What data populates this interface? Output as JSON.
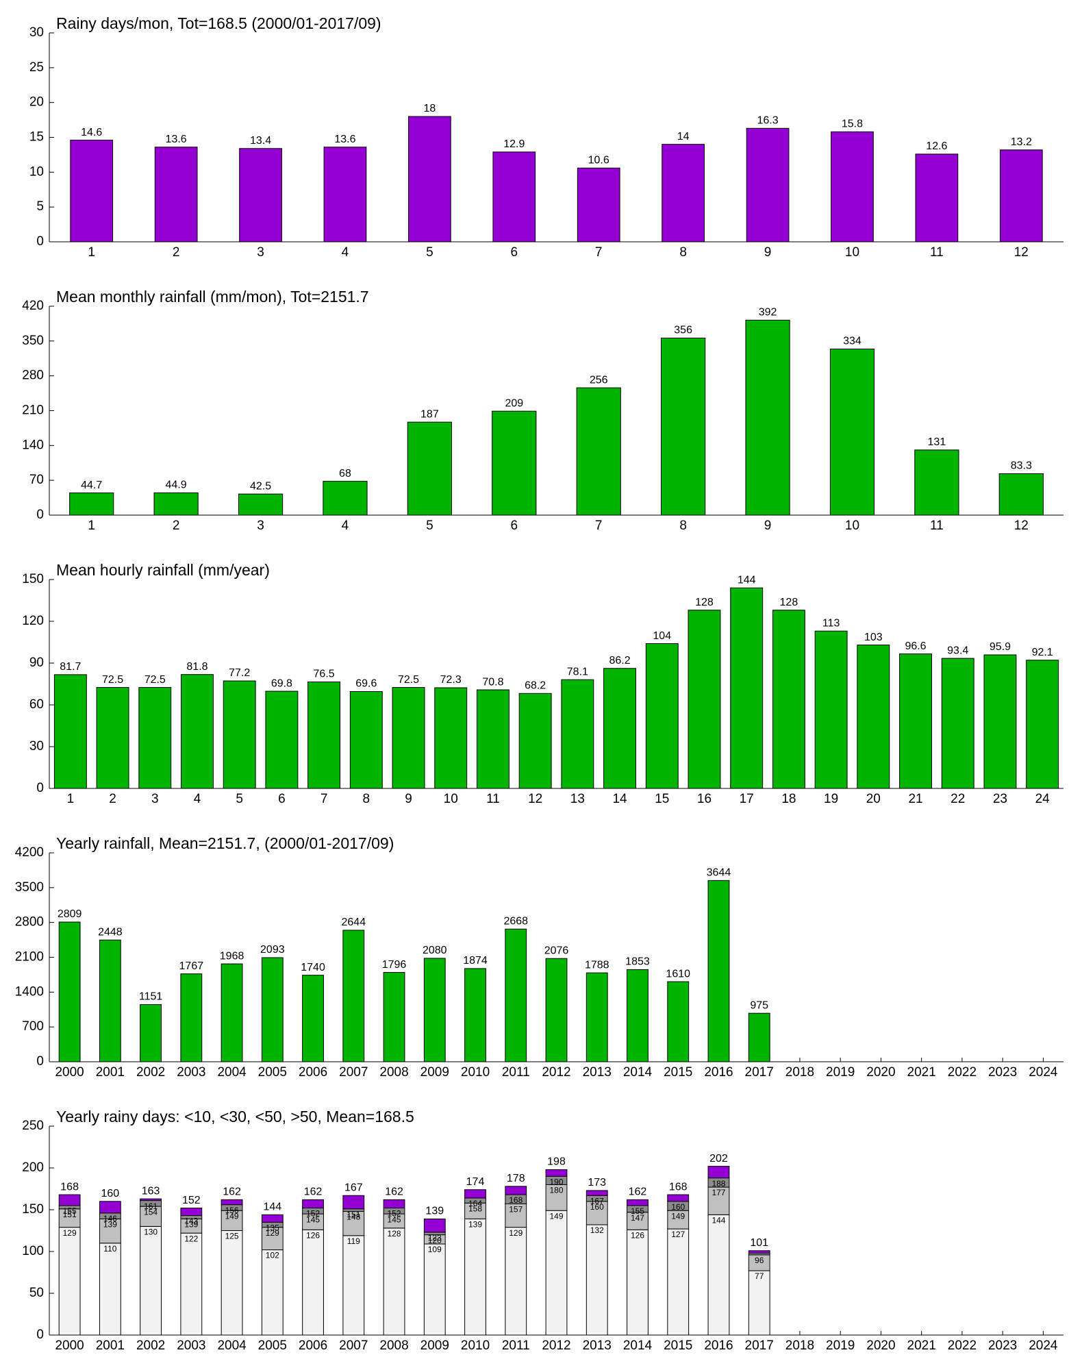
{
  "chart_data": [
    {
      "type": "bar",
      "title": "Rainy days/mon, Tot=168.5 (2000/01-2017/09)",
      "categories": [
        1,
        2,
        3,
        4,
        5,
        6,
        7,
        8,
        9,
        10,
        11,
        12
      ],
      "values": [
        14.6,
        13.6,
        13.4,
        13.6,
        18,
        12.9,
        10.6,
        14,
        16.3,
        15.8,
        12.6,
        13.2
      ],
      "color": "#9400d3",
      "ylim": [
        0,
        30
      ],
      "yticks": [
        0,
        5,
        10,
        15,
        20,
        25,
        30
      ]
    },
    {
      "type": "bar",
      "title": "Mean monthly rainfall (mm/mon), Tot=2151.7",
      "categories": [
        1,
        2,
        3,
        4,
        5,
        6,
        7,
        8,
        9,
        10,
        11,
        12
      ],
      "values": [
        44.7,
        44.9,
        42.5,
        68,
        187,
        209,
        256,
        356,
        392,
        334,
        131,
        83.3
      ],
      "color": "#00b400",
      "ylim": [
        0,
        420
      ],
      "yticks": [
        0,
        70,
        140,
        210,
        280,
        350,
        420
      ]
    },
    {
      "type": "bar",
      "title": "Mean hourly rainfall (mm/year)",
      "categories": [
        1,
        2,
        3,
        4,
        5,
        6,
        7,
        8,
        9,
        10,
        11,
        12,
        13,
        14,
        15,
        16,
        17,
        18,
        19,
        20,
        21,
        22,
        23,
        24
      ],
      "values": [
        81.7,
        72.5,
        72.5,
        81.8,
        77.2,
        69.8,
        76.5,
        69.6,
        72.5,
        72.3,
        70.8,
        68.2,
        78.1,
        86.2,
        104,
        128,
        144,
        128,
        113,
        103,
        96.6,
        93.4,
        95.9,
        92.1
      ],
      "color": "#00b400",
      "ylim": [
        0,
        150
      ],
      "yticks": [
        0,
        30,
        60,
        90,
        120,
        150
      ]
    },
    {
      "type": "bar",
      "title": "Yearly rainfall, Mean=2151.7, (2000/01-2017/09)",
      "categories": [
        2000,
        2001,
        2002,
        2003,
        2004,
        2005,
        2006,
        2007,
        2008,
        2009,
        2010,
        2011,
        2012,
        2013,
        2014,
        2015,
        2016,
        2017,
        2018,
        2019,
        2020,
        2021,
        2022,
        2023,
        2024
      ],
      "values": [
        2809,
        2448,
        1151,
        1767,
        1968,
        2093,
        1740,
        2644,
        1796,
        2080,
        1874,
        2668,
        2076,
        1788,
        1853,
        1610,
        3644,
        975,
        null,
        null,
        null,
        null,
        null,
        null,
        null
      ],
      "color": "#00b400",
      "ylim": [
        0,
        4200
      ],
      "yticks": [
        0,
        700,
        1400,
        2100,
        2800,
        3500,
        4200
      ]
    },
    {
      "type": "stacked_bar",
      "title": "Yearly rainy days: <10, <30, <50, >50, Mean=168.5",
      "categories": [
        2000,
        2001,
        2002,
        2003,
        2004,
        2005,
        2006,
        2007,
        2008,
        2009,
        2010,
        2011,
        2012,
        2013,
        2014,
        2015,
        2016,
        2017,
        2018,
        2019,
        2020,
        2021,
        2022,
        2023,
        2024
      ],
      "series": [
        {
          "name": "<10",
          "color": "#f2f2f2",
          "values": [
            129,
            110,
            130,
            122,
            125,
            102,
            126,
            119,
            128,
            109,
            139,
            129,
            149,
            132,
            126,
            127,
            144,
            77,
            null,
            null,
            null,
            null,
            null,
            null,
            null
          ],
          "labels": [
            "129",
            "110",
            "130",
            "122",
            "125",
            "102",
            "126",
            "119",
            "128",
            "109",
            "139",
            "129",
            "149",
            "132",
            "126",
            "127",
            "144",
            "77",
            null,
            null,
            null,
            null,
            null,
            null,
            null
          ]
        },
        {
          "name": "<30",
          "color": "#c0c0c0",
          "values": [
            22,
            29,
            24,
            17,
            24,
            27,
            19,
            29,
            17,
            11,
            19,
            28,
            31,
            28,
            21,
            22,
            33,
            19,
            null,
            null,
            null,
            null,
            null,
            null,
            null
          ],
          "labels": [
            "151",
            "139",
            "154",
            "139",
            "149",
            "129",
            "145",
            "148",
            "145",
            "120",
            "158",
            "157",
            "180",
            "160",
            "147",
            "149",
            "177",
            "96",
            null,
            null,
            null,
            null,
            null,
            null,
            null
          ]
        },
        {
          "name": "<50",
          "color": "#8c8c8c",
          "values": [
            4,
            7,
            7,
            4,
            7,
            6,
            7,
            3,
            7,
            3,
            6,
            11,
            10,
            7,
            8,
            11,
            11,
            2,
            null,
            null,
            null,
            null,
            null,
            null,
            null
          ],
          "labels": [
            "155",
            "146",
            "161",
            "143",
            "156",
            "135",
            "152",
            "151",
            "152",
            "123",
            "164",
            "168",
            "190",
            "167",
            "155",
            "160",
            "188",
            null,
            null,
            null,
            null,
            null,
            null,
            null,
            null
          ]
        },
        {
          "name": ">50",
          "color": "#9400d3",
          "values": [
            13,
            14,
            2,
            9,
            6,
            9,
            10,
            16,
            10,
            16,
            10,
            10,
            8,
            6,
            7,
            8,
            14,
            3,
            null,
            null,
            null,
            null,
            null,
            null,
            null
          ],
          "labels": [
            "168",
            "160",
            "163",
            "152",
            "162",
            "144",
            "162",
            "167",
            "162",
            "139",
            "174",
            "178",
            "198",
            "173",
            "162",
            "168",
            "202",
            "101",
            null,
            null,
            null,
            null,
            null,
            null,
            null
          ]
        }
      ],
      "ylim": [
        0,
        250
      ],
      "yticks": [
        0,
        50,
        100,
        150,
        200,
        250
      ]
    }
  ]
}
